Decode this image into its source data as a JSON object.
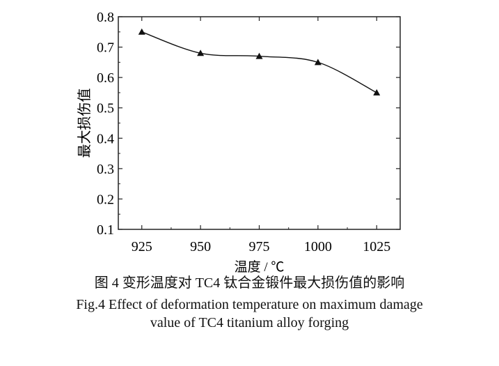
{
  "chart_data": {
    "type": "line",
    "x": [
      925,
      950,
      975,
      1000,
      1025
    ],
    "series": [
      {
        "values": [
          0.75,
          0.68,
          0.67,
          0.65,
          0.55
        ],
        "marker": "triangle",
        "color": "#111111",
        "smooth": true
      }
    ],
    "xlabel": "温度 / ℃",
    "ylabel": "最大损伤值",
    "xlim": [
      915,
      1035
    ],
    "ylim": [
      0.1,
      0.8
    ],
    "xticks": [
      "925",
      "950",
      "975",
      "1000",
      "1025"
    ],
    "yticks": [
      "0.1",
      "0.2",
      "0.3",
      "0.4",
      "0.5",
      "0.6",
      "0.7",
      "0.8"
    ],
    "grid": false,
    "legend": "none"
  },
  "caption": {
    "zh": "图 4  变形温度对 TC4 钛合金锻件最大损伤值的影响",
    "en_line1": "Fig.4  Effect of deformation temperature on maximum damage",
    "en_line2": "value of TC4 titanium alloy forging"
  }
}
